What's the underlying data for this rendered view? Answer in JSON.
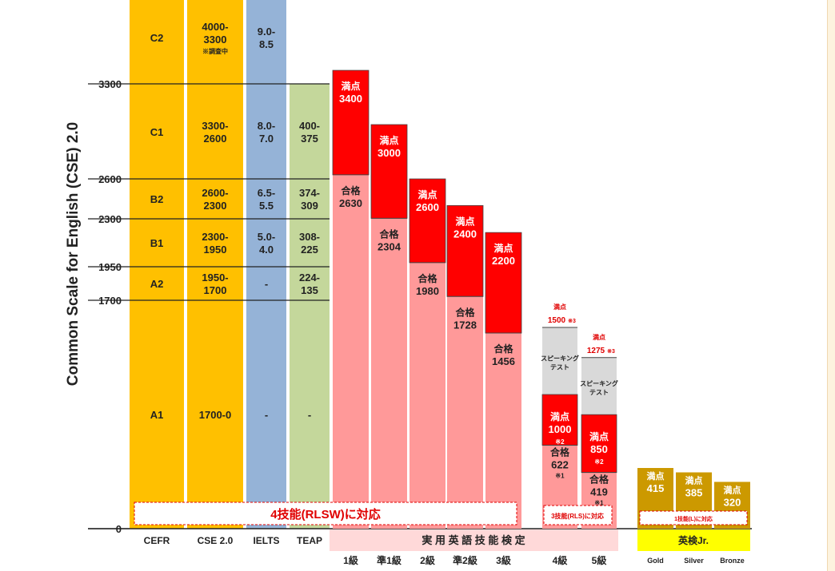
{
  "chart_data": {
    "type": "bar",
    "ylabel": "Common Scale for English (CSE) 2.0",
    "ylim": [
      0,
      3300
    ],
    "y_ticks": [
      0,
      1700,
      1950,
      2300,
      2600,
      3300
    ],
    "levels": [
      {
        "cefr": "C2",
        "cse": [
          "4000-",
          "3300"
        ],
        "cse_note": "※調査中",
        "ielts": [
          "9.0-",
          "8.5"
        ],
        "teap": []
      },
      {
        "cefr": "C1",
        "cse": [
          "3300-",
          "2600"
        ],
        "cse_note": "",
        "ielts": [
          "8.0-",
          "7.0"
        ],
        "teap": [
          "400-",
          "375"
        ]
      },
      {
        "cefr": "B2",
        "cse": [
          "2600-",
          "2300"
        ],
        "cse_note": "",
        "ielts": [
          "6.5-",
          "5.5"
        ],
        "teap": [
          "374-",
          "309"
        ]
      },
      {
        "cefr": "B1",
        "cse": [
          "2300-",
          "1950"
        ],
        "cse_note": "",
        "ielts": [
          "5.0-",
          "4.0"
        ],
        "teap": [
          "308-",
          "225"
        ]
      },
      {
        "cefr": "A2",
        "cse": [
          "1950-",
          "1700"
        ],
        "cse_note": "",
        "ielts": [
          "-"
        ],
        "teap": [
          "224-",
          "135"
        ]
      },
      {
        "cefr": "A1",
        "cse": [
          "1700-0"
        ],
        "cse_note": "",
        "ielts": [
          "-"
        ],
        "teap": [
          "-"
        ]
      }
    ],
    "eiken": [
      {
        "grade": "1級",
        "full": 3400,
        "pass": 2630,
        "full_label": "満点",
        "pass_label": "合格",
        "note": ""
      },
      {
        "grade": "準1級",
        "full": 3000,
        "pass": 2304,
        "full_label": "満点",
        "pass_label": "合格",
        "note": ""
      },
      {
        "grade": "2級",
        "full": 2600,
        "pass": 1980,
        "full_label": "満点",
        "pass_label": "合格",
        "note": ""
      },
      {
        "grade": "準2級",
        "full": 2400,
        "pass": 1728,
        "full_label": "満点",
        "pass_label": "合格",
        "note": ""
      },
      {
        "grade": "3級",
        "full": 2200,
        "pass": 1456,
        "full_label": "満点",
        "pass_label": "合格",
        "note": ""
      }
    ],
    "eiken_lower": [
      {
        "grade": "4級",
        "speaking_total": 1500,
        "speaking_label": "満点",
        "speaking_note": "※3",
        "speaking_box": [
          "スピーキング",
          "テスト"
        ],
        "full": 1000,
        "full_label": "満点",
        "full_note": "※2",
        "pass": 622,
        "pass_label": "合格",
        "pass_note": "※1"
      },
      {
        "grade": "5級",
        "speaking_total": 1275,
        "speaking_label": "満点",
        "speaking_note": "※3",
        "speaking_box": [
          "スピーキング",
          "テスト"
        ],
        "full": 850,
        "full_label": "満点",
        "full_note": "※2",
        "pass": 419,
        "pass_label": "合格",
        "pass_note": "※1"
      }
    ],
    "eiken_jr": [
      {
        "name": "Gold",
        "full": 415,
        "full_label": "満点"
      },
      {
        "name": "Silver",
        "full": 385,
        "full_label": "満点"
      },
      {
        "name": "Bronze",
        "full": 320,
        "full_label": "満点"
      }
    ],
    "columns": [
      "CEFR",
      "CSE 2.0",
      "IELTS",
      "TEAP"
    ],
    "eiken_header": "実 用 英 語 技 能 検 定",
    "jr_header": "英検Jr.",
    "banner_4skill": "4技能(RLSW)に対応",
    "banner_3skill": "3技能(RLS)に対応",
    "banner_1skill": "1技能(L)に対応",
    "colors": {
      "cefr": "#ffc000",
      "ielts": "#95b3d7",
      "teap": "#c4d79b",
      "full": "#ff0000",
      "pass": "#ff9999",
      "grey": "#d9d9d9",
      "jr": "#cc9900",
      "jr_header": "#ffff00",
      "header_pink": "#ffd9d9"
    }
  }
}
